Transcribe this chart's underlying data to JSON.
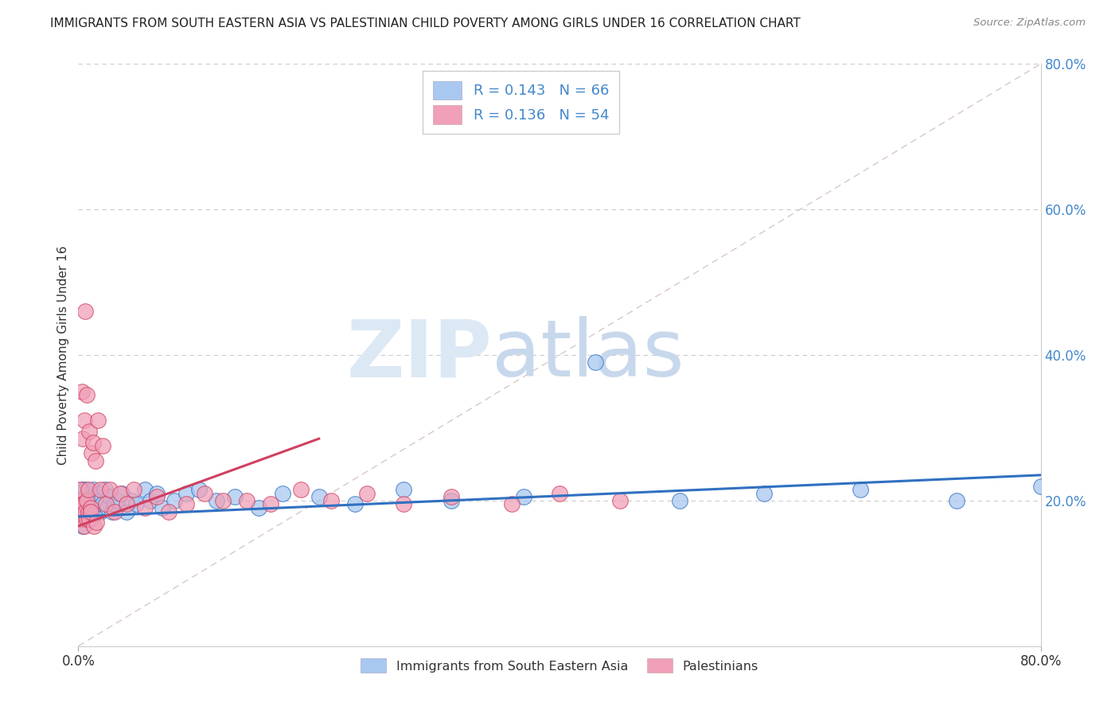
{
  "title": "IMMIGRANTS FROM SOUTH EASTERN ASIA VS PALESTINIAN CHILD POVERTY AMONG GIRLS UNDER 16 CORRELATION CHART",
  "source": "Source: ZipAtlas.com",
  "ylabel": "Child Poverty Among Girls Under 16",
  "R1": "0.143",
  "N1": "66",
  "R2": "0.136",
  "N2": "54",
  "color_blue": "#a8c8f0",
  "color_pink": "#f0a0b8",
  "line_blue": "#3070c0",
  "line_pink": "#d04060",
  "line_diag": "#d8c8c8",
  "legend_label1": "Immigrants from South Eastern Asia",
  "legend_label2": "Palestinians",
  "watermark_zip": "ZIP",
  "watermark_atlas": "atlas",
  "xlim": [
    0.0,
    0.8
  ],
  "ylim": [
    0.0,
    0.8
  ],
  "ytick_vals": [
    0.2,
    0.4,
    0.6,
    0.8
  ],
  "ytick_labels": [
    "20.0%",
    "40.0%",
    "60.0%",
    "80.0%"
  ],
  "xtick_vals": [
    0.0,
    0.8
  ],
  "xtick_labels": [
    "0.0%",
    "80.0%"
  ],
  "blue_x": [
    0.001,
    0.002,
    0.002,
    0.003,
    0.003,
    0.003,
    0.004,
    0.004,
    0.004,
    0.005,
    0.005,
    0.005,
    0.006,
    0.006,
    0.006,
    0.007,
    0.007,
    0.008,
    0.008,
    0.009,
    0.009,
    0.01,
    0.01,
    0.011,
    0.012,
    0.012,
    0.013,
    0.014,
    0.015,
    0.016,
    0.017,
    0.018,
    0.019,
    0.02,
    0.022,
    0.024,
    0.026,
    0.028,
    0.03,
    0.033,
    0.036,
    0.04,
    0.044,
    0.048,
    0.055,
    0.06,
    0.065,
    0.07,
    0.08,
    0.09,
    0.1,
    0.115,
    0.13,
    0.15,
    0.17,
    0.2,
    0.23,
    0.27,
    0.31,
    0.37,
    0.43,
    0.5,
    0.57,
    0.65,
    0.73,
    0.8
  ],
  "blue_y": [
    0.195,
    0.185,
    0.21,
    0.175,
    0.195,
    0.215,
    0.185,
    0.2,
    0.165,
    0.19,
    0.175,
    0.205,
    0.18,
    0.195,
    0.215,
    0.185,
    0.2,
    0.175,
    0.195,
    0.185,
    0.21,
    0.19,
    0.175,
    0.205,
    0.215,
    0.19,
    0.195,
    0.185,
    0.2,
    0.19,
    0.21,
    0.185,
    0.2,
    0.195,
    0.215,
    0.19,
    0.205,
    0.185,
    0.195,
    0.2,
    0.21,
    0.185,
    0.2,
    0.195,
    0.215,
    0.2,
    0.21,
    0.19,
    0.2,
    0.21,
    0.215,
    0.2,
    0.205,
    0.19,
    0.21,
    0.205,
    0.195,
    0.215,
    0.2,
    0.205,
    0.39,
    0.2,
    0.21,
    0.215,
    0.2,
    0.22
  ],
  "pink_x": [
    0.001,
    0.001,
    0.002,
    0.002,
    0.002,
    0.003,
    0.003,
    0.004,
    0.004,
    0.004,
    0.005,
    0.005,
    0.005,
    0.006,
    0.006,
    0.007,
    0.007,
    0.007,
    0.008,
    0.008,
    0.009,
    0.009,
    0.01,
    0.01,
    0.011,
    0.012,
    0.013,
    0.014,
    0.015,
    0.016,
    0.018,
    0.02,
    0.023,
    0.026,
    0.03,
    0.035,
    0.04,
    0.046,
    0.055,
    0.065,
    0.075,
    0.09,
    0.105,
    0.12,
    0.14,
    0.16,
    0.185,
    0.21,
    0.24,
    0.27,
    0.31,
    0.36,
    0.4,
    0.45
  ],
  "pink_y": [
    0.185,
    0.2,
    0.175,
    0.215,
    0.19,
    0.185,
    0.35,
    0.195,
    0.285,
    0.175,
    0.195,
    0.165,
    0.31,
    0.185,
    0.46,
    0.2,
    0.175,
    0.345,
    0.185,
    0.215,
    0.175,
    0.295,
    0.19,
    0.185,
    0.265,
    0.28,
    0.165,
    0.255,
    0.17,
    0.31,
    0.215,
    0.275,
    0.195,
    0.215,
    0.185,
    0.21,
    0.195,
    0.215,
    0.19,
    0.205,
    0.185,
    0.195,
    0.21,
    0.2,
    0.2,
    0.195,
    0.215,
    0.2,
    0.21,
    0.195,
    0.205,
    0.195,
    0.21,
    0.2
  ],
  "blue_trend_x": [
    0.0,
    0.8
  ],
  "blue_trend_y": [
    0.178,
    0.235
  ],
  "pink_trend_x": [
    0.0,
    0.2
  ],
  "pink_trend_y": [
    0.165,
    0.285
  ]
}
